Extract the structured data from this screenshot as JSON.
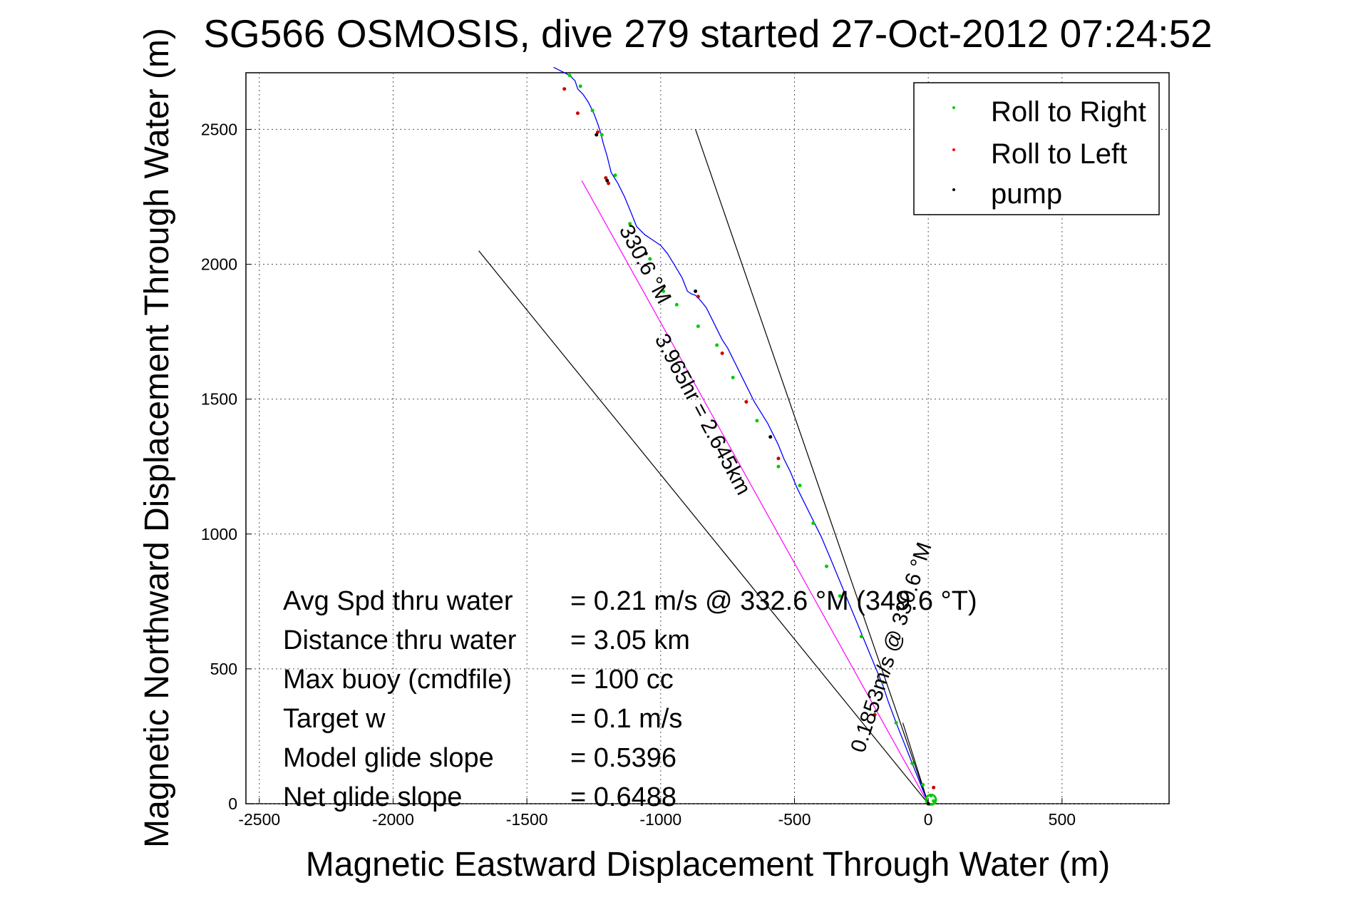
{
  "chart_data": {
    "type": "line",
    "title": "SG566 OSMOSIS, dive 279 started 27-Oct-2012 07:24:52",
    "xlabel": "Magnetic Eastward Displacement Through Water (m)",
    "ylabel": "Magnetic Northward Displacement Through Water (m)",
    "xlim": [
      -2550,
      900
    ],
    "ylim": [
      0,
      2710
    ],
    "xticks": [
      -2500,
      -2000,
      -1500,
      -1000,
      -500,
      0,
      500
    ],
    "yticks": [
      0,
      500,
      1000,
      1500,
      2000,
      2500
    ],
    "grid": true,
    "legend_position": "top-right",
    "legend": [
      {
        "label": "Roll to Right",
        "color": "#00cc00"
      },
      {
        "label": "Roll to Left",
        "color": "#ff0000"
      },
      {
        "label": "pump",
        "color": "#000000"
      }
    ],
    "track": {
      "color": "#0000ff",
      "x": [
        0,
        -20,
        -40,
        -60,
        -80,
        -100,
        -120,
        -150,
        -170,
        -195,
        -220,
        -245,
        -270,
        -295,
        -320,
        -345,
        -370,
        -400,
        -430,
        -460,
        -490,
        -515,
        -540,
        -560,
        -580,
        -600,
        -625,
        -650,
        -670,
        -690,
        -710,
        -730,
        -750,
        -770,
        -790,
        -810,
        -830,
        -855,
        -870,
        -885,
        -900,
        -920,
        -950,
        -975,
        -1000,
        -1030,
        -1060,
        -1090,
        -1110,
        -1135,
        -1160,
        -1185,
        -1200,
        -1215,
        -1225,
        -1235,
        -1250,
        -1270,
        -1290,
        -1310,
        -1320,
        -1340,
        -1360,
        -1380,
        -1400
      ],
      "y": [
        0,
        50,
        100,
        150,
        200,
        250,
        300,
        380,
        440,
        500,
        560,
        620,
        680,
        740,
        800,
        860,
        920,
        990,
        1050,
        1110,
        1170,
        1230,
        1280,
        1330,
        1370,
        1410,
        1450,
        1490,
        1530,
        1570,
        1610,
        1650,
        1690,
        1720,
        1760,
        1800,
        1840,
        1870,
        1885,
        1890,
        1900,
        1950,
        2000,
        2040,
        2070,
        2090,
        2110,
        2140,
        2190,
        2250,
        2300,
        2340,
        2400,
        2450,
        2490,
        2520,
        2560,
        2600,
        2630,
        2650,
        2680,
        2700,
        2710,
        2720,
        2730
      ]
    },
    "reference_lines": [
      {
        "color": "#ff00ff",
        "x": [
          0,
          -1295
        ],
        "y": [
          0,
          2310
        ]
      },
      {
        "color": "#000000",
        "x": [
          0,
          -1680
        ],
        "y": [
          0,
          2050
        ]
      },
      {
        "color": "#000000",
        "x": [
          0,
          -870
        ],
        "y": [
          0,
          2500
        ]
      },
      {
        "color": "#000000",
        "x": [
          0,
          -95
        ],
        "y": [
          0,
          300
        ]
      }
    ],
    "roll_right_points": {
      "x": [
        -1340,
        -1300,
        -1255,
        -1220,
        -1170,
        -1115,
        -1040,
        -990,
        -940,
        -860,
        -790,
        -730,
        -640,
        -560,
        -480,
        -430,
        -380,
        -330,
        -250,
        -170,
        -120,
        -60,
        -20,
        10,
        20
      ],
      "y": [
        2700,
        2660,
        2570,
        2480,
        2330,
        2150,
        2020,
        1900,
        1850,
        1770,
        1700,
        1580,
        1420,
        1250,
        1180,
        1040,
        880,
        770,
        620,
        450,
        300,
        150,
        70,
        30,
        10
      ]
    },
    "roll_left_points": {
      "x": [
        -1360,
        -1310,
        -1235,
        -1205,
        -1195,
        -860,
        -770,
        -680,
        -560,
        -200,
        20
      ],
      "y": [
        2650,
        2560,
        2490,
        2320,
        2300,
        1880,
        1670,
        1490,
        1280,
        330,
        60
      ]
    },
    "pump_points": {
      "x": [
        -1240,
        -1200,
        -1055,
        -870,
        -590,
        0
      ],
      "y": [
        2480,
        2310,
        2040,
        1900,
        1360,
        0
      ]
    },
    "line_labels": [
      {
        "text": "330.6 °M"
      },
      {
        "text": "3.965hr = 2.645km"
      },
      {
        "text": "0.1853m/s @ 330.6 °M"
      }
    ],
    "stats": [
      {
        "label": "Avg Spd thru water",
        "value": "=  0.21 m/s @  332.6 °M (349.6 °T)"
      },
      {
        "label": "Distance thru water",
        "value": "=  3.05 km"
      },
      {
        "label": "Max buoy (cmdfile)",
        "value": "= 100 cc"
      },
      {
        "label": "Target w",
        "value": "= 0.1 m/s"
      },
      {
        "label": "Model glide slope",
        "value": "= 0.5396"
      },
      {
        "label": "Net glide slope",
        "value": "= 0.6488"
      }
    ]
  }
}
